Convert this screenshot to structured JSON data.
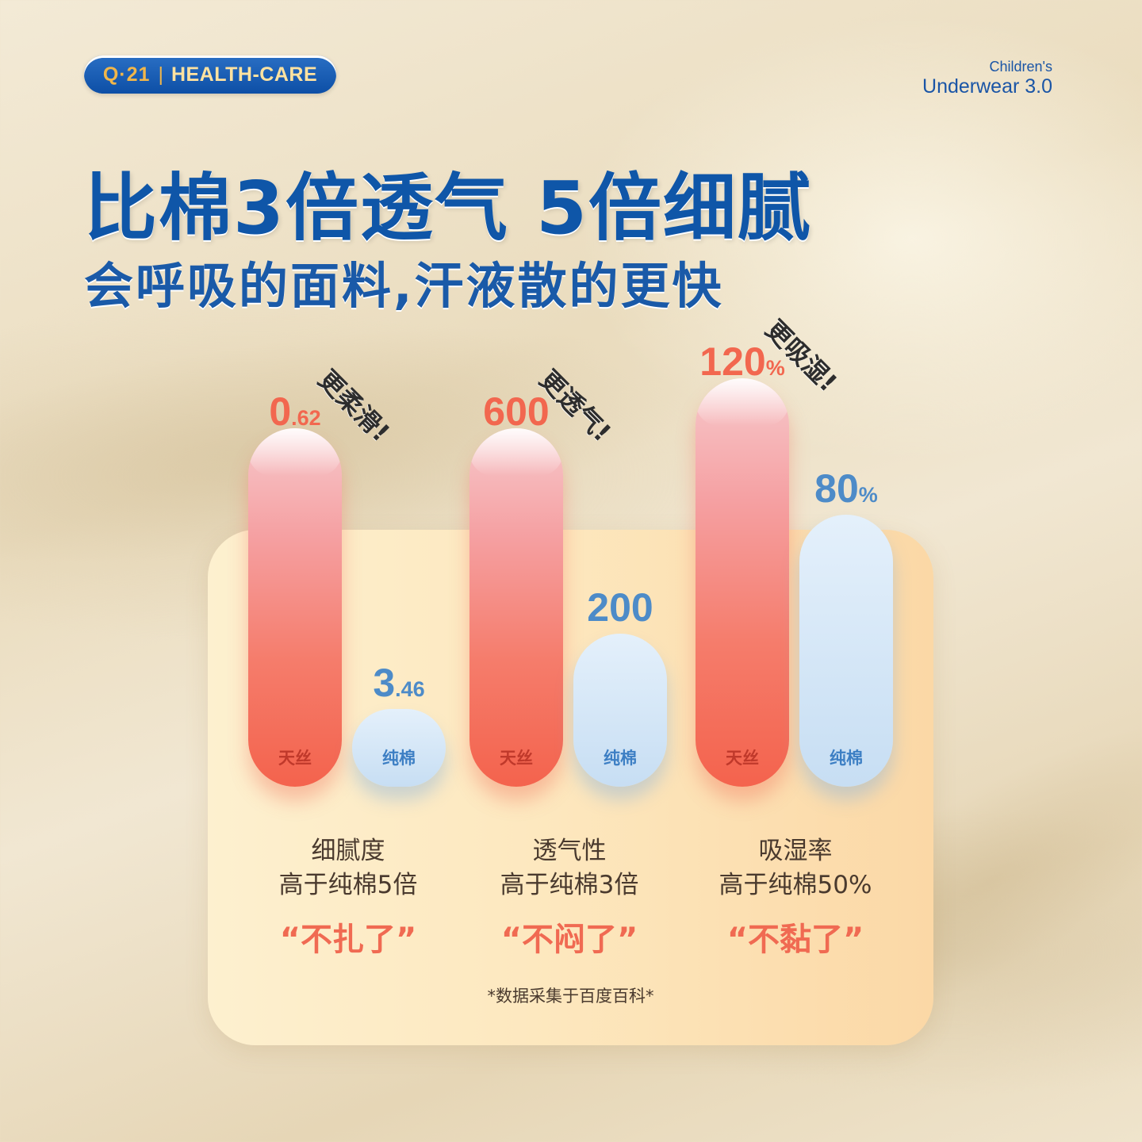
{
  "brand": {
    "logo": "Q·21",
    "separator": "|",
    "name": "HEALTH-CARE"
  },
  "product": {
    "line1": "Children's",
    "line2": "Underwear 3.0"
  },
  "headline": "比棉3倍透气 5倍细腻",
  "subline": "会呼吸的面料,汗液散的更快",
  "colors": {
    "primary_blue": "#0f56a8",
    "accent_red": "#f2674f",
    "soft_blue": "#4d8bc8",
    "panel": "#fde8bf"
  },
  "chart_data": {
    "type": "bar",
    "categories": [
      "细腻度",
      "透气性",
      "吸湿率"
    ],
    "series": [
      {
        "name": "天丝",
        "values": [
          0.62,
          600,
          120
        ],
        "display": [
          [
            "0",
            ".62"
          ],
          [
            "600",
            ""
          ],
          [
            "120",
            "%"
          ]
        ]
      },
      {
        "name": "纯棉",
        "values": [
          3.46,
          200,
          80
        ],
        "display": [
          [
            "3",
            ".46"
          ],
          [
            "200",
            ""
          ],
          [
            "80",
            "%"
          ]
        ]
      }
    ],
    "annotations": [
      "更柔滑!",
      "更透气!",
      "更吸湿!"
    ],
    "captions": [
      {
        "title": "细腻度",
        "detail": "高于纯棉5倍",
        "quote": "“不扎了”"
      },
      {
        "title": "透气性",
        "detail": "高于纯棉3倍",
        "quote": "“不闷了”"
      },
      {
        "title": "吸湿率",
        "detail": "高于纯棉50%",
        "quote": "“不黏了”"
      }
    ],
    "footnote": "*数据采集于百度百科*"
  }
}
